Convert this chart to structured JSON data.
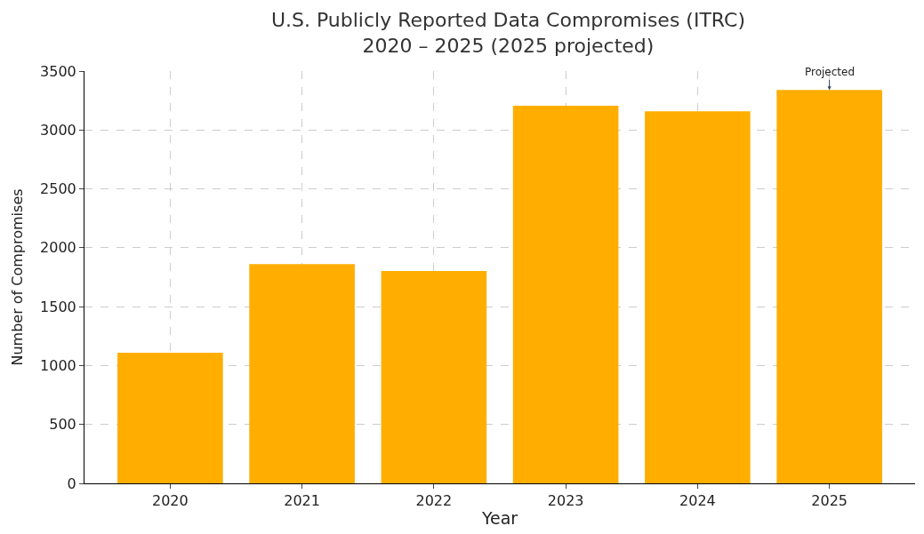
{
  "chart_data": {
    "type": "bar",
    "title": "U.S. Publicly Reported Data Compromises (ITRC)\n2020 – 2025 (2025 projected)",
    "xlabel": "Year",
    "ylabel": "Number of Compromises",
    "categories": [
      "2020",
      "2021",
      "2022",
      "2023",
      "2024",
      "2025"
    ],
    "values": [
      1108,
      1862,
      1802,
      3205,
      3158,
      3340
    ],
    "color": "#ffae00",
    "ylim": [
      0,
      3500
    ],
    "yticks": [
      0,
      500,
      1000,
      1500,
      2000,
      2500,
      3000,
      3500
    ],
    "grid": true,
    "annotations": [
      {
        "text": "Projected",
        "x": "2025",
        "y": 3340
      }
    ]
  }
}
